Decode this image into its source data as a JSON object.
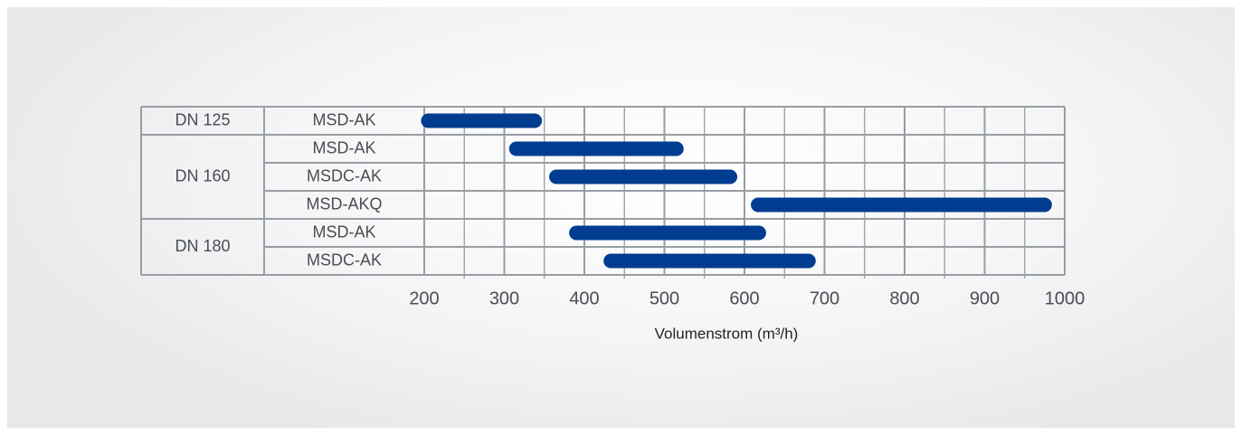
{
  "chart_data": {
    "type": "range-bar",
    "title": "",
    "xlabel": "Volumenstrom (m³/h)",
    "xlim": [
      200,
      1000
    ],
    "xticks": [
      200,
      300,
      400,
      500,
      600,
      700,
      800,
      900,
      1000
    ],
    "grid": true,
    "bar_color": "#003c8f",
    "groups": [
      {
        "label": "DN 125",
        "rows": [
          {
            "label": "MSD-AK",
            "min": 205,
            "max": 338
          }
        ]
      },
      {
        "label": "DN 160",
        "rows": [
          {
            "label": "MSD-AK",
            "min": 315,
            "max": 515
          },
          {
            "label": "MSDC-AK",
            "min": 365,
            "max": 582
          },
          {
            "label": "MSD-AKQ",
            "min": 617,
            "max": 975
          }
        ]
      },
      {
        "label": "DN 180",
        "rows": [
          {
            "label": "MSD-AK",
            "min": 390,
            "max": 618
          },
          {
            "label": "MSDC-AK",
            "min": 433,
            "max": 680
          }
        ]
      }
    ]
  }
}
